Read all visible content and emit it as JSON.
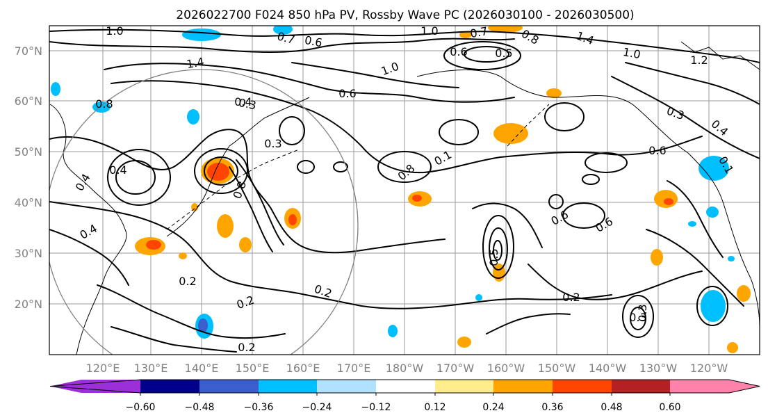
{
  "title": "2026022700 F024 850 hPa PV, Rossby Wave PC (2026030100 - 2026030500)",
  "lat_labels": [
    "70°N",
    "60°N",
    "50°N",
    "40°N",
    "30°N",
    "20°N"
  ],
  "lon_labels": [
    "120°E",
    "130°E",
    "140°E",
    "150°E",
    "160°E",
    "170°E",
    "180°W",
    "170°W",
    "160°W",
    "150°W",
    "140°W",
    "130°W",
    "120°W"
  ],
  "colorbar": {
    "ticks": [
      "−0.60",
      "−0.48",
      "−0.36",
      "−0.24",
      "−0.12",
      "0.12",
      "0.24",
      "0.36",
      "0.48",
      "0.60"
    ],
    "colors": [
      "#9b30d9",
      "#00008b",
      "#3a5fcd",
      "#00bfff",
      "#b0e2ff",
      "#ffffff",
      "#ffec8b",
      "#ffa500",
      "#ff4500",
      "#b22222",
      "#ff82ab"
    ]
  },
  "contour_labels": [
    "1.0",
    "0.7",
    "0.6",
    "1.0",
    "0.7",
    "0.8",
    "1.4",
    "1.0",
    "1.2",
    "0.5",
    "0.6",
    "1.4",
    "1.0",
    "0.3",
    "0.6",
    "0.4",
    "0.8",
    "0.4",
    "0.8",
    "0.4",
    "0.3",
    "0.1",
    "0.8",
    "0.2",
    "0.6",
    "0.6",
    "0.4",
    "0.3",
    "0.6",
    "0.5",
    "0.3",
    "0.2",
    "0.2",
    "0.3",
    "0.4",
    "0.2",
    "0.2",
    "0.1"
  ],
  "colors": {
    "positive_orange": "#ffa500",
    "positive_red": "#ff4500",
    "negative_cyan": "#00bfff",
    "negative_blue": "#3a5fcd",
    "grid": "#9a9a9a",
    "frame": "#000000"
  }
}
